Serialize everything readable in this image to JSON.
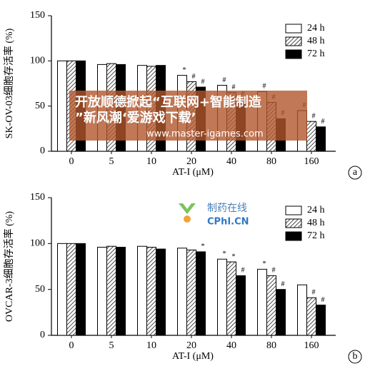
{
  "chart_data": [
    {
      "type": "bar",
      "panel_label": "a",
      "y_label": "SK-OV-03细胞存活率 (%)",
      "x_label": "AT-I (μM)",
      "categories": [
        "0",
        "5",
        "10",
        "20",
        "40",
        "80",
        "160"
      ],
      "ylim": [
        0,
        150
      ],
      "yticks": [
        0,
        50,
        100,
        150
      ],
      "legend": "top-right",
      "series": [
        {
          "name": "24 h",
          "color": "#ffffff",
          "hatch": false,
          "values": [
            100,
            96,
            95,
            84,
            73,
            66,
            45
          ],
          "annotations": [
            null,
            null,
            null,
            "*",
            "#",
            "#",
            "#"
          ]
        },
        {
          "name": "48 h",
          "color": "#ffffff",
          "hatch": true,
          "values": [
            100,
            97,
            94,
            77,
            65,
            54,
            33
          ],
          "annotations": [
            null,
            null,
            null,
            "#",
            "#",
            "#",
            "#"
          ]
        },
        {
          "name": "72 h",
          "color": "#000000",
          "hatch": false,
          "values": [
            100,
            96,
            95,
            71,
            58,
            36,
            27
          ],
          "annotations": [
            null,
            null,
            null,
            "#",
            "#",
            "#",
            "#"
          ]
        }
      ]
    },
    {
      "type": "bar",
      "panel_label": "b",
      "y_label": "OVCAR-3细胞存活率 (%)",
      "x_label": "AT-I (μM)",
      "categories": [
        "0",
        "5",
        "10",
        "20",
        "40",
        "80",
        "160"
      ],
      "ylim": [
        0,
        150
      ],
      "yticks": [
        0,
        50,
        100,
        150
      ],
      "legend": "top-right",
      "series": [
        {
          "name": "24 h",
          "color": "#ffffff",
          "hatch": false,
          "values": [
            100,
            96,
            97,
            95,
            83,
            72,
            55
          ],
          "annotations": [
            null,
            null,
            null,
            null,
            "*",
            "*",
            null
          ]
        },
        {
          "name": "48 h",
          "color": "#ffffff",
          "hatch": true,
          "values": [
            100,
            97,
            96,
            93,
            80,
            65,
            41
          ],
          "annotations": [
            null,
            null,
            null,
            null,
            "*",
            "#",
            "#"
          ]
        },
        {
          "name": "72 h",
          "color": "#000000",
          "hatch": false,
          "values": [
            100,
            96,
            94,
            91,
            65,
            50,
            33
          ],
          "annotations": [
            null,
            null,
            null,
            "*",
            "#",
            "#",
            "#"
          ]
        }
      ]
    }
  ],
  "watermarks": {
    "banner_line1": "开放顺德掀起“互联网+智能制造",
    "banner_line2": "”新风潮‘爱游戏下载’",
    "url": "www.master-igames.com",
    "logo_cn": "制药在线",
    "logo_en": "CPhI.CN"
  }
}
